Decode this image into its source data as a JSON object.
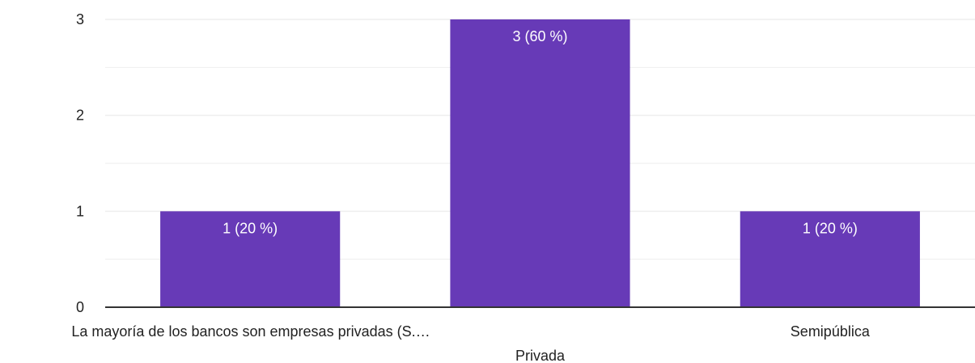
{
  "chart_data": {
    "type": "bar",
    "title": "",
    "xlabel": "",
    "ylabel": "",
    "categories": [
      "La mayoría de los bancos son empresas privadas (S.…",
      "Privada",
      "Semipública"
    ],
    "values": [
      1,
      3,
      1
    ],
    "data_labels": [
      "1 (20 %)",
      "3 (60 %)",
      "1 (20 %)"
    ],
    "y_ticks": [
      "0",
      "1",
      "2",
      "3"
    ],
    "ylim": [
      0,
      3
    ],
    "grid": true,
    "bar_color": "#673ab7",
    "grid_color": "#eeeeee",
    "axis_color": "#333333"
  }
}
